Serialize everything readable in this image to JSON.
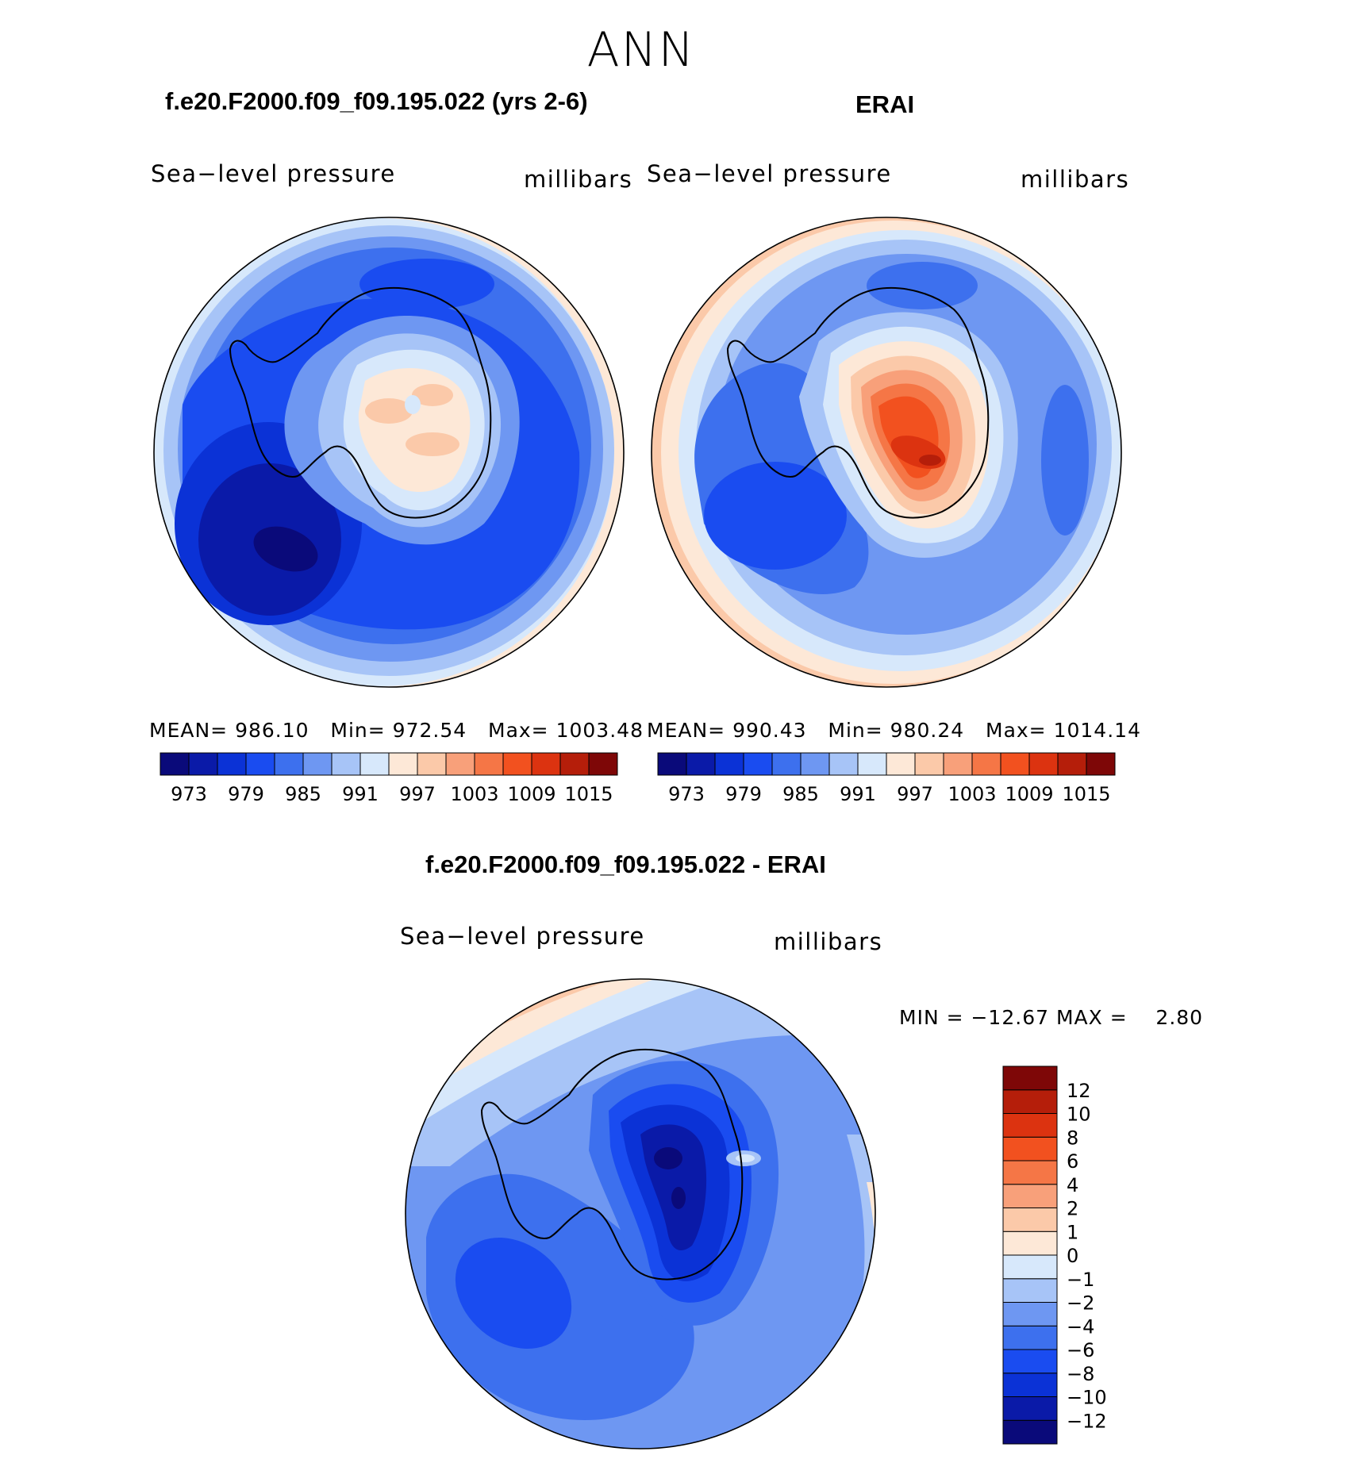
{
  "season": "ANN",
  "panels": [
    {
      "title": "f.e20.F2000.f09_f09.195.022 (yrs 2-6)",
      "variable": "Sea−level pressure",
      "units": "millibars",
      "stats": {
        "mean_label": "MEAN=",
        "mean": "986.10",
        "min_label": "Min=",
        "min": "972.54",
        "max_label": "Max=",
        "max": "1003.48"
      }
    },
    {
      "title": "ERAI",
      "variable": "Sea−level pressure",
      "units": "millibars",
      "stats": {
        "mean_label": "MEAN=",
        "mean": "990.43",
        "min_label": "Min=",
        "min": "980.24",
        "max_label": "Max=",
        "max": "1014.14"
      }
    }
  ],
  "diff_panel": {
    "title": "f.e20.F2000.f09_f09.195.022 - ERAI",
    "variable": "Sea−level pressure",
    "units": "millibars",
    "minmax": "MIN = −12.67 MAX =    2.80"
  },
  "colorbar_abs": {
    "colors": [
      "#0a0a7a",
      "#0a1aa8",
      "#0b32d6",
      "#1a4cf0",
      "#3d70ee",
      "#6e97f2",
      "#a7c4f7",
      "#d7e8fb",
      "#fde8d7",
      "#fbc9a9",
      "#f8a07a",
      "#f57646",
      "#f2511f",
      "#dc3310",
      "#b51e0a",
      "#7e0707"
    ],
    "ticks": [
      "973",
      "979",
      "985",
      "991",
      "997",
      "1003",
      "1009",
      "1015"
    ]
  },
  "colorbar_diff": {
    "colors": [
      "#0a0a7a",
      "#0a1aa8",
      "#0b32d6",
      "#1a4cf0",
      "#3d70ee",
      "#6e97f2",
      "#a7c4f7",
      "#d7e8fb",
      "#fde8d7",
      "#fbc9a9",
      "#f8a07a",
      "#f57646",
      "#f2511f",
      "#dc3310",
      "#b51e0a",
      "#7e0707"
    ],
    "ticks": [
      "−12",
      "−10",
      "−8",
      "−6",
      "−4",
      "−2",
      "−1",
      "0",
      "1",
      "2",
      "4",
      "6",
      "8",
      "10",
      "12"
    ]
  }
}
